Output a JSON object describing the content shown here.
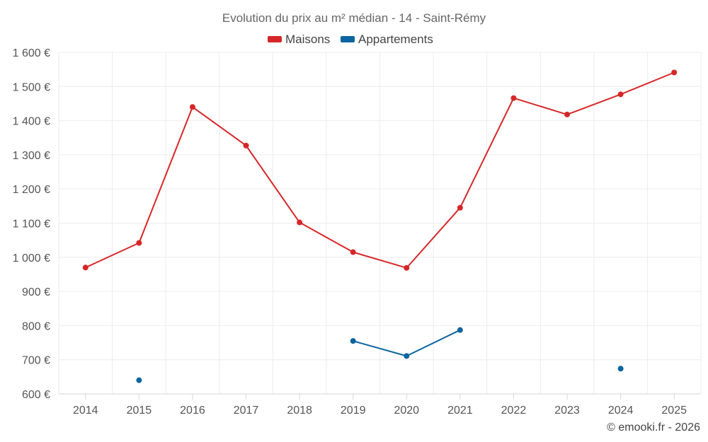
{
  "chart_data": {
    "type": "line",
    "title": "Evolution du prix au m² médian - 14 - Saint-Rémy",
    "xlabel": "",
    "ylabel": "",
    "ylim": [
      600,
      1600
    ],
    "yticks": [
      600,
      700,
      800,
      900,
      1000,
      1100,
      1200,
      1300,
      1400,
      1500,
      1600
    ],
    "ytick_labels": [
      "600 €",
      "700 €",
      "800 €",
      "900 €",
      "1 000 €",
      "1 100 €",
      "1 200 €",
      "1 300 €",
      "1 400 €",
      "1 500 €",
      "1 600 €"
    ],
    "categories": [
      "2014",
      "2015",
      "2016",
      "2017",
      "2018",
      "2019",
      "2020",
      "2021",
      "2022",
      "2023",
      "2024",
      "2025"
    ],
    "grid": true,
    "legend_position": "top-center",
    "series": [
      {
        "name": "Maisons",
        "color": "#d62728",
        "values": [
          970,
          1042,
          1440,
          1327,
          1102,
          1015,
          969,
          1145,
          1466,
          1418,
          1477,
          1541
        ]
      },
      {
        "name": "Appartements",
        "color": "#0a64a0",
        "values": [
          null,
          640,
          null,
          null,
          null,
          755,
          711,
          787,
          null,
          null,
          674,
          null
        ]
      }
    ]
  },
  "credit": "© emooki.fr - 2026"
}
